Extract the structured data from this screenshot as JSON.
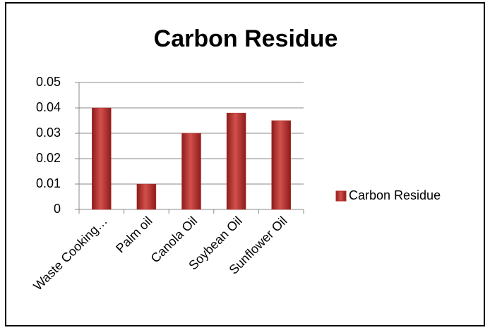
{
  "chart_data": {
    "type": "bar",
    "title": "Carbon Residue",
    "categories": [
      "Waste Cooking…",
      "Palm oil",
      "Canola Oil",
      "Soybean Oil",
      "Sunflower Oil"
    ],
    "series": [
      {
        "name": "Carbon Residue",
        "color": "#b5302c",
        "values": [
          0.04,
          0.01,
          0.03,
          0.038,
          0.035
        ]
      }
    ],
    "ylim": [
      0,
      0.05
    ],
    "yticks": [
      0,
      0.01,
      0.02,
      0.03,
      0.04,
      0.05
    ],
    "grid": true,
    "legend": "right"
  }
}
